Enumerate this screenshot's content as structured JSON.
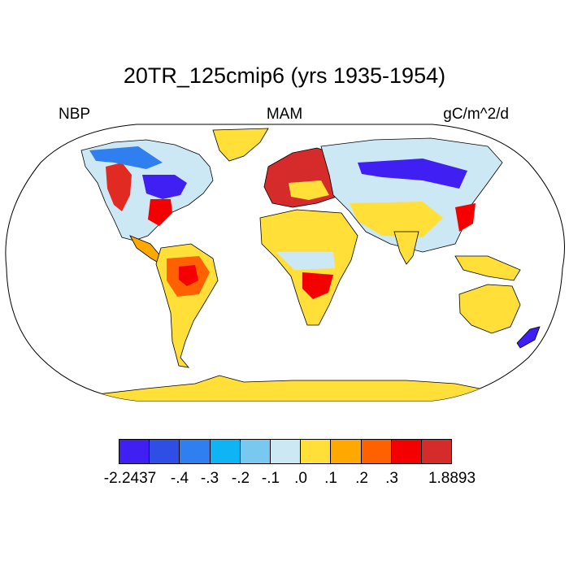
{
  "title": "20TR_125cmip6 (yrs 1935-1954)",
  "left_label": "NBP",
  "center_label": "MAM",
  "right_label": "gC/m^2/d",
  "colors": {
    "ocean": "#ffffff",
    "coast": "#000000",
    "bins": [
      "#3f1ff2",
      "#2e4ee6",
      "#2f7ff0",
      "#0fb4f5",
      "#79c8ef",
      "#cde8f5",
      "#ffdf38",
      "#ffa800",
      "#ff6100",
      "#f40000",
      "#d62b2b"
    ]
  },
  "colorbar": {
    "tick_labels": [
      "-2.2437",
      "-.4",
      "-.3",
      "-.2",
      "-.1",
      ".0",
      ".1",
      ".2",
      ".3",
      "1.8893"
    ]
  }
}
